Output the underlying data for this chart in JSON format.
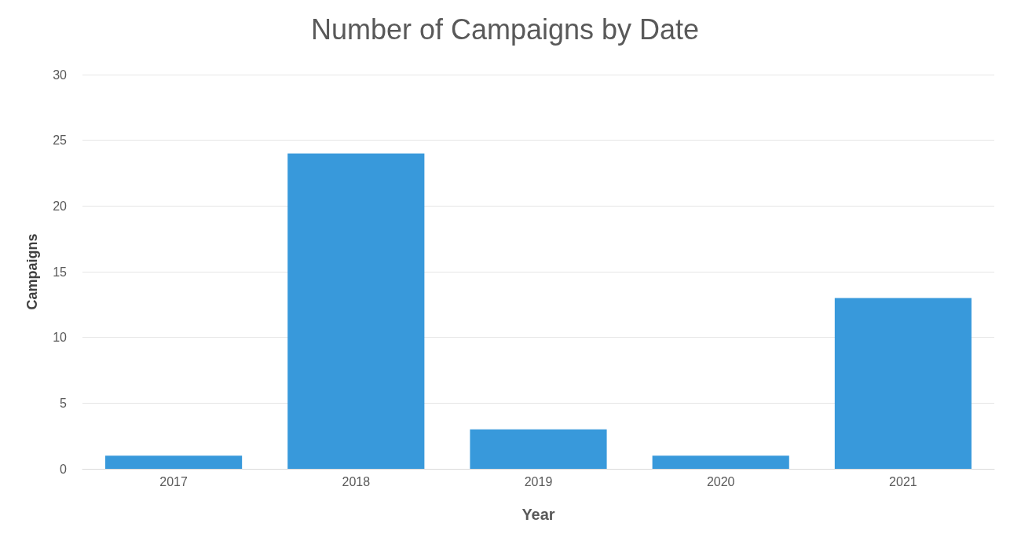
{
  "chart_data": {
    "type": "bar",
    "title": "Number of Campaigns by Date",
    "xlabel": "Year",
    "ylabel": "Campaigns",
    "categories": [
      "2017",
      "2018",
      "2019",
      "2020",
      "2021"
    ],
    "values": [
      1,
      24,
      3,
      1,
      13
    ],
    "color": "#3899db",
    "ylim": [
      0,
      30
    ],
    "yticks": [
      0,
      5,
      10,
      15,
      20,
      25,
      30
    ],
    "grid": "y"
  }
}
